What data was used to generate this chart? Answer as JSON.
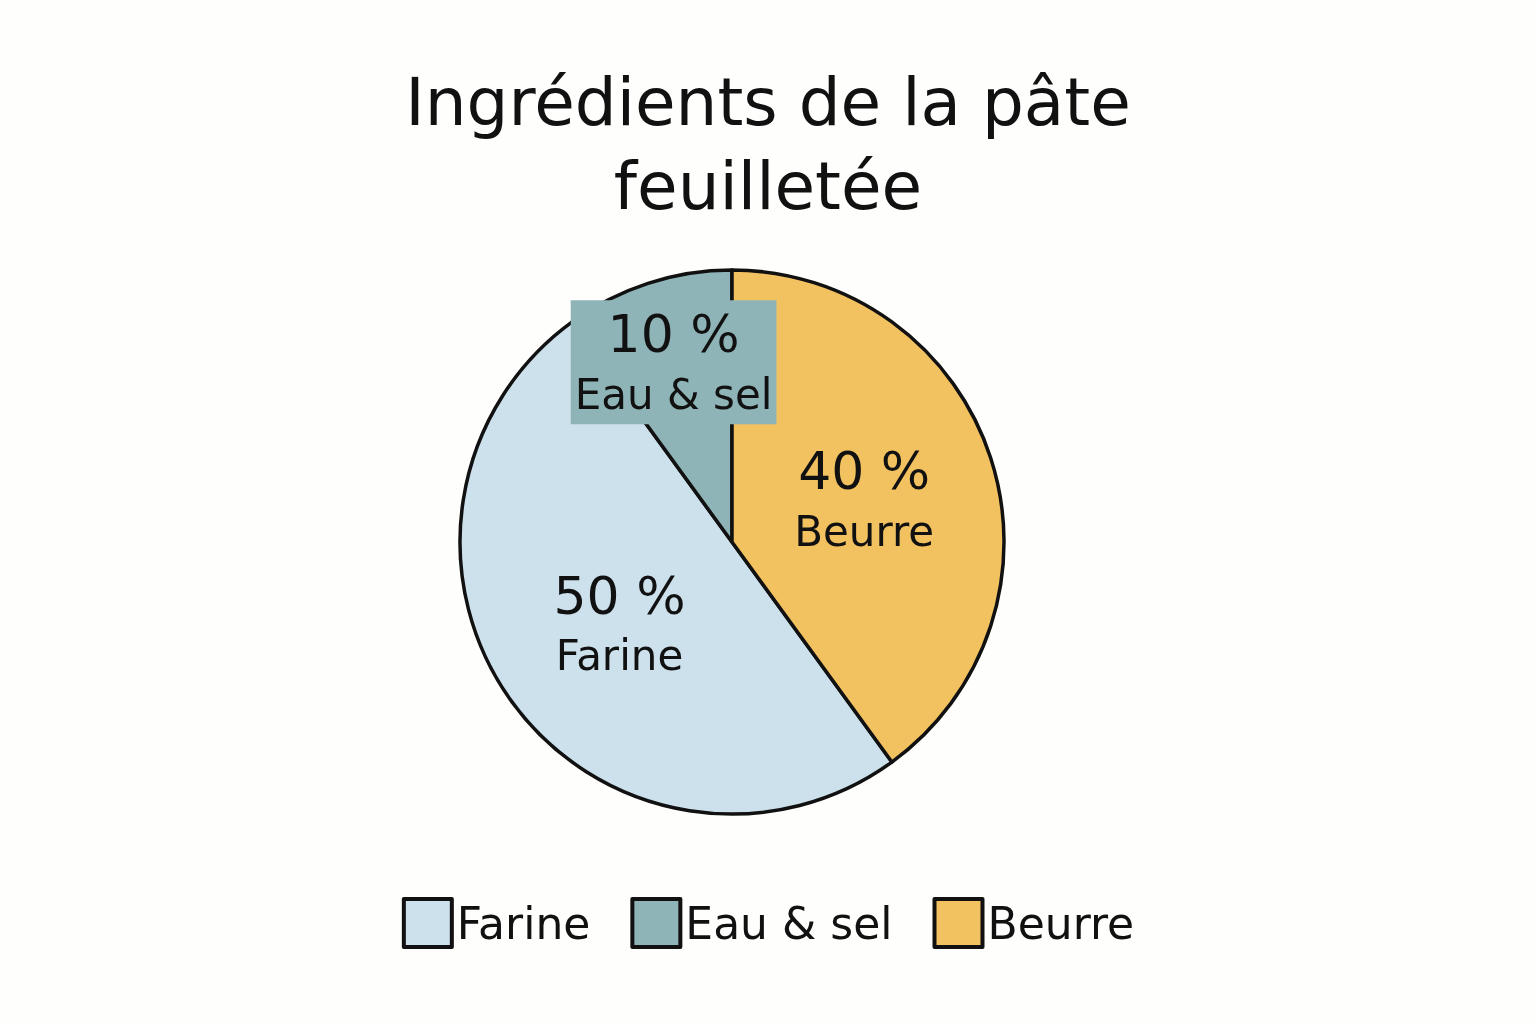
{
  "chart_data": {
    "type": "pie",
    "title": "Ingrédients de la pâte\nfeuilletée",
    "categories": [
      "Farine",
      "Eau & sel",
      "Beurre"
    ],
    "values": [
      50,
      10,
      40
    ],
    "value_labels": [
      "50 %",
      "10 %",
      "40 %"
    ],
    "colors": [
      "#cce1ec",
      "#8fb4b8",
      "#f2c160"
    ],
    "legend": "bottom"
  }
}
